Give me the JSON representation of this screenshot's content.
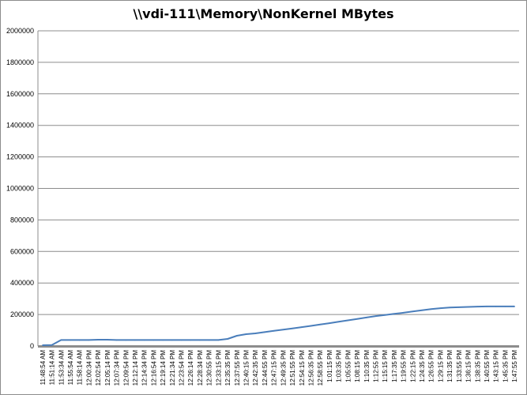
{
  "chart_data": {
    "type": "line",
    "title": "\\\\vdi-111\\Memory\\NonKernel MBytes",
    "xlabel": "",
    "ylabel": "",
    "ylim": [
      0,
      2000000
    ],
    "yticks": [
      0,
      200000,
      400000,
      600000,
      800000,
      1000000,
      1200000,
      1400000,
      1600000,
      1800000,
      2000000
    ],
    "grid": "horizontal",
    "legend": "none",
    "colors": {
      "line": "#4a7ebb",
      "grid": "#8c8c8c",
      "x_axis": "#8c8c8c"
    },
    "categories": [
      "11:48:54 AM",
      "11:51:14 AM",
      "11:53:34 AM",
      "11:55:54 AM",
      "11:58:14 AM",
      "12:00:34 PM",
      "12:02:54 PM",
      "12:05:14 PM",
      "12:07:34 PM",
      "12:09:54 PM",
      "12:12:14 PM",
      "12:14:34 PM",
      "12:16:54 PM",
      "12:19:14 PM",
      "12:21:34 PM",
      "12:23:54 PM",
      "12:26:14 PM",
      "12:28:34 PM",
      "12:30:55 PM",
      "12:33:15 PM",
      "12:35:35 PM",
      "12:37:55 PM",
      "12:40:15 PM",
      "12:42:35 PM",
      "12:44:55 PM",
      "12:47:15 PM",
      "12:49:35 PM",
      "12:51:55 PM",
      "12:54:15 PM",
      "12:56:35 PM",
      "12:58:55 PM",
      "1:01:15 PM",
      "1:03:35 PM",
      "1:05:55 PM",
      "1:08:15 PM",
      "1:10:35 PM",
      "1:12:55 PM",
      "1:15:15 PM",
      "1:17:35 PM",
      "1:19:55 PM",
      "1:22:15 PM",
      "1:24:35 PM",
      "1:26:55 PM",
      "1:29:15 PM",
      "1:31:35 PM",
      "1:33:55 PM",
      "1:36:15 PM",
      "1:38:35 PM",
      "1:40:55 PM",
      "1:43:15 PM",
      "1:45:35 PM",
      "1:47:55 PM"
    ],
    "series": [
      {
        "values": [
          5000,
          6000,
          38000,
          38000,
          38000,
          38000,
          40000,
          40000,
          38000,
          38000,
          38000,
          38000,
          38000,
          38000,
          38000,
          38000,
          38000,
          38000,
          38000,
          38000,
          45000,
          65000,
          75000,
          80000,
          88000,
          96000,
          104000,
          112000,
          120000,
          128000,
          137000,
          145000,
          154000,
          163000,
          172000,
          181000,
          190000,
          197000,
          204000,
          211000,
          219000,
          227000,
          234000,
          240000,
          244000,
          246000,
          248000,
          250000,
          251000,
          251000,
          251000,
          251000
        ]
      }
    ]
  }
}
